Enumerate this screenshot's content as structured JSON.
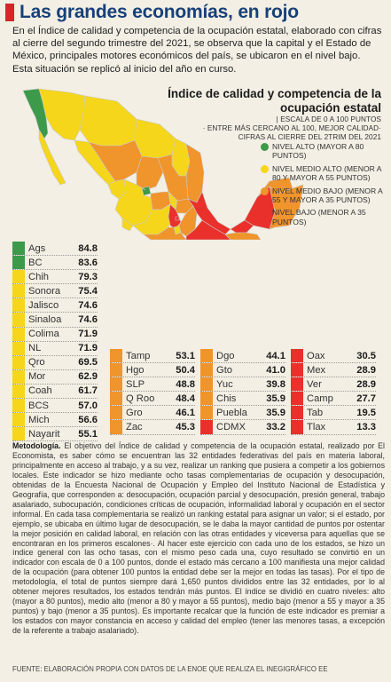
{
  "header": {
    "title": "Las grandes economías, en rojo",
    "intro": "En el Índice de calidad y competencia de la ocupación estatal, elaborado con cifras al cierre del segundo trimestre del 2021, se observa que la capital y el Estado de México, principales motores económicos del país, se ubicaron en el nivel bajo. Esta situación se replicó al inicio del año en curso."
  },
  "map": {
    "title": "Índice de calidad y competencia de la ocupación estatal",
    "subtitle_1": "| ESCALA DE 0 A 100 PUNTOS",
    "subtitle_2": "· ENTRE MÁS CERCANO AL 100, MEJOR CALIDAD·",
    "subtitle_3": "CIFRAS AL CIERRE DEL 2TRIM DEL 2021"
  },
  "legend": [
    {
      "label": "NIVEL ALTO (MAYOR A 80 PUNTOS)",
      "color": "#3c9a4a"
    },
    {
      "label": "NIVEL MEDIO ALTO (MENOR A 80 Y MAYOR A 55 PUNTOS)",
      "color": "#f5d61a"
    },
    {
      "label": "NIVEL MEDIO BAJO (MENOR A 55 Y MAYOR A 35 PUNTOS)",
      "color": "#f0942c"
    },
    {
      "label": "NIVEL BAJO (MENOR A 35 PUNTOS)",
      "color": "#e9302a"
    }
  ],
  "colors": {
    "title_square": "#d7262a",
    "title_text": "#17407a"
  },
  "states": {
    "col1": [
      {
        "name": "Ags",
        "value": "84.8",
        "color": "#3c9a4a"
      },
      {
        "name": "BC",
        "value": "83.6",
        "color": "#3c9a4a"
      },
      {
        "name": "Chih",
        "value": "79.3",
        "color": "#f5d61a"
      },
      {
        "name": "Sonora",
        "value": "75.4",
        "color": "#f5d61a"
      },
      {
        "name": "Jalisco",
        "value": "74.6",
        "color": "#f5d61a"
      },
      {
        "name": "Sinaloa",
        "value": "74.6",
        "color": "#f5d61a"
      },
      {
        "name": "Colima",
        "value": "71.9",
        "color": "#f5d61a"
      },
      {
        "name": "NL",
        "value": "71.9",
        "color": "#f5d61a"
      },
      {
        "name": "Qro",
        "value": "69.5",
        "color": "#f5d61a"
      },
      {
        "name": "Mor",
        "value": "62.9",
        "color": "#f5d61a"
      },
      {
        "name": "Coah",
        "value": "61.7",
        "color": "#f5d61a"
      },
      {
        "name": "BCS",
        "value": "57.0",
        "color": "#f5d61a"
      },
      {
        "name": "Mich",
        "value": "56.6",
        "color": "#f5d61a"
      },
      {
        "name": "Nayarit",
        "value": "55.1",
        "color": "#f5d61a"
      }
    ],
    "col2": [
      {
        "name": "Tamp",
        "value": "53.1",
        "color": "#f0942c"
      },
      {
        "name": "Hgo",
        "value": "50.4",
        "color": "#f0942c"
      },
      {
        "name": "SLP",
        "value": "48.8",
        "color": "#f0942c"
      },
      {
        "name": "Q Roo",
        "value": "48.4",
        "color": "#f0942c"
      },
      {
        "name": "Gro",
        "value": "46.1",
        "color": "#f0942c"
      },
      {
        "name": "Zac",
        "value": "45.3",
        "color": "#f0942c"
      }
    ],
    "col3": [
      {
        "name": "Dgo",
        "value": "44.1",
        "color": "#f0942c"
      },
      {
        "name": "Gto",
        "value": "41.0",
        "color": "#f0942c"
      },
      {
        "name": "Yuc",
        "value": "39.8",
        "color": "#f0942c"
      },
      {
        "name": "Chis",
        "value": "35.9",
        "color": "#f0942c"
      },
      {
        "name": "Puebla",
        "value": "35.9",
        "color": "#f0942c"
      },
      {
        "name": "CDMX",
        "value": "33.2",
        "color": "#e9302a"
      }
    ],
    "col4": [
      {
        "name": "Oax",
        "value": "30.5",
        "color": "#e9302a"
      },
      {
        "name": "Mex",
        "value": "28.9",
        "color": "#e9302a"
      },
      {
        "name": "Ver",
        "value": "28.9",
        "color": "#e9302a"
      },
      {
        "name": "Camp",
        "value": "27.7",
        "color": "#e9302a"
      },
      {
        "name": "Tab",
        "value": "19.5",
        "color": "#e9302a"
      },
      {
        "name": "Tlax",
        "value": "13.3",
        "color": "#e9302a"
      }
    ]
  },
  "methodology": {
    "label": "Metodología.",
    "text": " El objetivo del Índice de calidad y competencia de la ocupación estatal, realizado por El Economista, es saber cómo se encuentran las 32 entidades federativas del país en materia laboral, principalmente en acceso al trabajo, y a su vez, realizar un ranking que pusiera a competir a los gobiernos locales. Este indicador se hizo mediante ocho tasas complementarias de ocupación y desocupación, obtenidas de la Encuesta Nacional de Ocupación y Empleo del Instituto Nacional de Estadística y Geografía, que corresponden a: desocupación, ocupación parcial y desocupación, presión general, trabajo asalariado, subocupación, condiciones críticas de ocupación, informalidad laboral y ocupación en el sector informal. En cada tasa complementaria se realizó un ranking estatal para asignar un valor; si el estado, por ejemplo, se ubicaba en último lugar de desocupación, se le daba la mayor cantidad de puntos por ostentar la mejor posición en calidad laboral, en relación con las otras entidades y viceversa para aquellas que se encontraran en los primeros escalones·. Al hacer este ejercicio con cada uno de los estados, se hizo un índice general con las ocho tasas, con el mismo peso cada una, cuyo resultado se convirtió en un indicador con escala de 0 a 100 puntos, donde el estado más cercano a 100 manifiesta una mejor calidad de la ocupación (para obtener 100 puntos la entidad debe ser la mejor en todas las tasas). Por el tipo de metodología, el total de puntos siempre dará 1,650 puntos divididos entre las 32 entidades, por lo al obtener mejores resultados, los estados tendrán más puntos. El índice se dividió en cuatro niveles: alto (mayor a 80 puntos), medio alto (menor a 80 y mayor a 55 puntos), medio bajo (menor a 55 y mayor a 35 puntos) y bajo (menor a 35 puntos). Es importante recalcar que la función de este indicador es premiar a los estados con mayor constancia en acceso y calidad del empleo (tener las menores tasas, a excepción de la referente a trabajo asalariado)."
  },
  "source": "FUENTE: ELABORACIÓN PROPIA CON DATOS DE LA ENOE QUE REALIZA EL INEGIGRÁFICO EE"
}
